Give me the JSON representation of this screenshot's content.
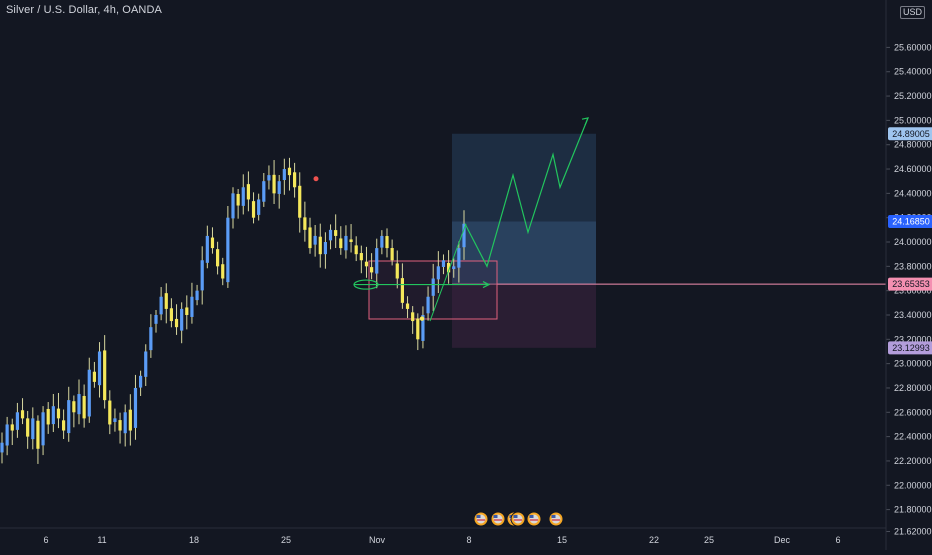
{
  "title": "Silver / U.S. Dollar, 4h, OANDA",
  "currency": "USD",
  "colors": {
    "background": "#131722",
    "bull": "#5b9cf6",
    "bear": "#f5e85b",
    "wick": "#d8d8a0",
    "text": "#d1d4dc",
    "axis": "#2a2e39",
    "target_zone": "#2a4a6b",
    "stop_zone": "#3a2340",
    "projection": "#22c55e",
    "last_price": "#2962ff"
  },
  "chart_data": {
    "type": "candlestick",
    "x_ticks": [
      "6",
      "11",
      "18",
      "25",
      "Nov",
      "8",
      "15",
      "22",
      "25",
      "Dec",
      "6"
    ],
    "y_ticks": [
      "25.60000",
      "25.40000",
      "25.20000",
      "25.00000",
      "24.80000",
      "24.60000",
      "24.40000",
      "24.20000",
      "24.00000",
      "23.80000",
      "23.60000",
      "23.40000",
      "23.20000",
      "23.00000",
      "22.80000",
      "22.60000",
      "22.40000",
      "22.20000",
      "22.00000",
      "21.80000",
      "21.62000"
    ],
    "ylim": [
      21.55,
      25.85
    ],
    "price_labels": [
      {
        "label": "24.89005",
        "value": 24.89005,
        "kind": "target"
      },
      {
        "label": "24.16850",
        "value": 24.1685,
        "kind": "last"
      },
      {
        "label": "23.65353",
        "value": 23.65353,
        "kind": "entry"
      },
      {
        "label": "23.12993",
        "value": 23.12993,
        "kind": "stop"
      }
    ],
    "position": {
      "entry": 23.65353,
      "target": 24.89005,
      "stop": 23.12993
    },
    "close_path": [
      22.35,
      22.5,
      22.45,
      22.6,
      22.55,
      22.4,
      22.55,
      22.3,
      22.6,
      22.5,
      22.65,
      22.55,
      22.45,
      22.7,
      22.6,
      22.75,
      22.55,
      22.95,
      22.85,
      23.1,
      22.7,
      22.5,
      22.55,
      22.45,
      22.6,
      22.45,
      22.8,
      22.9,
      23.1,
      23.3,
      23.4,
      23.55,
      23.45,
      23.35,
      23.3,
      23.45,
      23.4,
      23.55,
      23.6,
      23.85,
      24.05,
      23.95,
      23.8,
      23.7,
      24.2,
      24.4,
      24.3,
      24.45,
      24.35,
      24.2,
      24.35,
      24.5,
      24.55,
      24.4,
      24.5,
      24.6,
      24.55,
      24.45,
      24.2,
      24.1,
      23.95,
      24.05,
      23.9,
      24.0,
      24.1,
      24.05,
      23.95,
      24.05,
      24.0,
      23.9,
      23.85,
      23.8,
      23.75,
      23.95,
      24.05,
      23.95,
      23.85,
      23.7,
      23.5,
      23.45,
      23.35,
      23.2,
      23.4,
      23.55,
      23.7,
      23.8,
      23.85,
      23.75,
      23.8,
      23.95,
      24.15
    ],
    "events": [
      "US",
      "US",
      "US",
      "US",
      "US",
      "US"
    ]
  }
}
